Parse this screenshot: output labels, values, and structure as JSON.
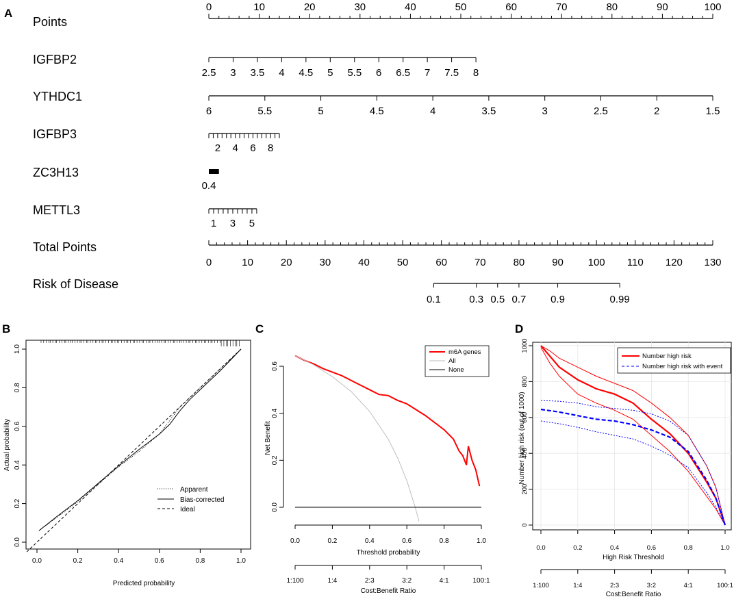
{
  "chart_data": [
    {
      "panel": "A",
      "type": "nomogram",
      "rows": [
        {
          "name": "Points",
          "scale": "points",
          "ticks": [
            0,
            10,
            20,
            30,
            40,
            50,
            60,
            70,
            80,
            90,
            100
          ]
        },
        {
          "name": "IGFBP2",
          "ticks": [
            "2.5",
            "3",
            "3.5",
            "4",
            "4.5",
            "5",
            "5.5",
            "6",
            "6.5",
            "7",
            "7.5",
            "8"
          ],
          "points_range": [
            0,
            53
          ]
        },
        {
          "name": "YTHDC1",
          "ticks": [
            "6",
            "5.5",
            "5",
            "4.5",
            "4",
            "3.5",
            "3",
            "2.5",
            "2",
            "1.5"
          ],
          "points_range": [
            0,
            100
          ]
        },
        {
          "name": "IGFBP3",
          "ticks": [
            "2",
            "4",
            "6",
            "8"
          ],
          "minor_from": 1,
          "minor_to": 9,
          "points_range": [
            0,
            14
          ]
        },
        {
          "name": "ZC3H13",
          "ticks": [
            "0.4"
          ],
          "points_range": [
            0,
            2
          ]
        },
        {
          "name": "METTL3",
          "ticks": [
            "1",
            "3",
            "5"
          ],
          "minor_from": 0.5,
          "minor_to": 5.5,
          "points_range": [
            0,
            9.5
          ]
        },
        {
          "name": "Total Points",
          "scale": "total",
          "ticks": [
            0,
            10,
            20,
            30,
            40,
            50,
            60,
            70,
            80,
            90,
            100,
            110,
            120,
            130
          ]
        },
        {
          "name": "Risk of Disease",
          "ticks": [
            "0.1",
            "0.3",
            "0.5",
            "0.7",
            "0.9",
            "0.99"
          ],
          "total_points": [
            58,
            69,
            74.5,
            80,
            90,
            106
          ]
        }
      ]
    },
    {
      "panel": "B",
      "type": "line",
      "title": "",
      "xlabel": "Predicted probability",
      "ylabel": "Actual probability",
      "xlim": [
        0,
        1
      ],
      "ylim": [
        0,
        1
      ],
      "xticks": [
        "0.0",
        "0.2",
        "0.4",
        "0.6",
        "0.8",
        "1.0"
      ],
      "yticks": [
        "0.0",
        "0.2",
        "0.4",
        "0.6",
        "0.8",
        "1.0"
      ],
      "legend": [
        "Apparent",
        "Bias-corrected",
        "Ideal"
      ],
      "series": [
        {
          "name": "Apparent",
          "style": "dotted",
          "x": [
            0.01,
            0.1,
            0.2,
            0.3,
            0.4,
            0.5,
            0.6,
            0.7,
            0.8,
            0.9,
            1.0
          ],
          "y": [
            0.06,
            0.13,
            0.21,
            0.3,
            0.39,
            0.47,
            0.56,
            0.7,
            0.8,
            0.9,
            1.0
          ]
        },
        {
          "name": "Bias-corrected",
          "style": "solid",
          "x": [
            0.01,
            0.1,
            0.2,
            0.3,
            0.4,
            0.5,
            0.55,
            0.6,
            0.65,
            0.7,
            0.75,
            0.8,
            0.9,
            1.0
          ],
          "y": [
            0.06,
            0.135,
            0.215,
            0.305,
            0.395,
            0.48,
            0.52,
            0.56,
            0.61,
            0.68,
            0.74,
            0.79,
            0.89,
            1.0
          ]
        },
        {
          "name": "Ideal",
          "style": "dashed",
          "x": [
            -0.05,
            1.0
          ],
          "y": [
            -0.05,
            1.0
          ]
        }
      ]
    },
    {
      "panel": "C",
      "type": "line",
      "xlabel": "Threshold probability",
      "ylabel": "Net Benefit",
      "xlim": [
        0,
        1
      ],
      "ylim": [
        -0.1,
        0.7
      ],
      "xticks": [
        "0.0",
        "0.2",
        "0.4",
        "0.6",
        "0.8",
        "1.0"
      ],
      "yticks": [
        "0.0",
        "0.2",
        "0.4",
        "0.6"
      ],
      "cost_benefit_label": "Cost:Benefit Ratio",
      "cost_benefit_ticks": [
        "1:100",
        "1:4",
        "2:3",
        "3:2",
        "4:1",
        "100:1"
      ],
      "series": [
        {
          "name": "m6A genes",
          "color": "#ff0000",
          "x": [
            0,
            0.05,
            0.1,
            0.15,
            0.2,
            0.25,
            0.3,
            0.35,
            0.4,
            0.45,
            0.5,
            0.55,
            0.6,
            0.65,
            0.7,
            0.75,
            0.8,
            0.85,
            0.88,
            0.9,
            0.92,
            0.93,
            0.95,
            0.97,
            0.99
          ],
          "y": [
            0.645,
            0.625,
            0.61,
            0.59,
            0.575,
            0.56,
            0.54,
            0.52,
            0.5,
            0.48,
            0.475,
            0.455,
            0.44,
            0.415,
            0.39,
            0.36,
            0.33,
            0.29,
            0.24,
            0.22,
            0.18,
            0.26,
            0.2,
            0.16,
            0.09
          ]
        },
        {
          "name": "All",
          "color": "#bebebe",
          "x": [
            0,
            0.1,
            0.2,
            0.3,
            0.4,
            0.5,
            0.55,
            0.6,
            0.645,
            0.665
          ],
          "y": [
            0.645,
            0.606,
            0.556,
            0.493,
            0.408,
            0.29,
            0.211,
            0.113,
            0.0,
            -0.06
          ]
        },
        {
          "name": "None",
          "color": "#000000",
          "x": [
            0,
            1
          ],
          "y": [
            0,
            0
          ]
        }
      ]
    },
    {
      "panel": "D",
      "type": "line",
      "xlabel": "High Risk Threshold",
      "ylabel": "Number high risk (out of 1000)",
      "xlim": [
        0,
        1
      ],
      "ylim": [
        0,
        1000
      ],
      "xticks": [
        "0.0",
        "0.2",
        "0.4",
        "0.6",
        "0.8",
        "1.0"
      ],
      "yticks": [
        "0",
        "200",
        "400",
        "600",
        "800",
        "1000"
      ],
      "cost_benefit_label": "Cost:Benefit Ratio",
      "cost_benefit_ticks": [
        "1:100",
        "1:4",
        "2:3",
        "3:2",
        "4:1",
        "100:1"
      ],
      "series": [
        {
          "name": "Number high risk",
          "color": "#ff0000",
          "style": "solid",
          "x": [
            0,
            0.05,
            0.1,
            0.2,
            0.3,
            0.4,
            0.5,
            0.6,
            0.7,
            0.8,
            0.9,
            0.95,
            1.0
          ],
          "y": [
            1000,
            940,
            880,
            810,
            760,
            730,
            680,
            590,
            510,
            400,
            240,
            150,
            0
          ]
        },
        {
          "name": "Number high risk upper",
          "color": "#ff0000",
          "style": "thin",
          "x": [
            0,
            0.05,
            0.1,
            0.2,
            0.3,
            0.4,
            0.5,
            0.6,
            0.7,
            0.8,
            0.9,
            0.95,
            1.0
          ],
          "y": [
            1000,
            970,
            930,
            880,
            830,
            790,
            750,
            680,
            600,
            500,
            330,
            210,
            0
          ]
        },
        {
          "name": "Number high risk lower",
          "color": "#ff0000",
          "style": "thin",
          "x": [
            0,
            0.05,
            0.1,
            0.2,
            0.3,
            0.4,
            0.5,
            0.6,
            0.7,
            0.8,
            0.9,
            0.95,
            1.0
          ],
          "y": [
            990,
            900,
            830,
            730,
            680,
            640,
            590,
            500,
            410,
            300,
            160,
            90,
            0
          ]
        },
        {
          "name": "Number high risk with event",
          "color": "#0000ff",
          "style": "dashed",
          "x": [
            0,
            0.1,
            0.2,
            0.3,
            0.4,
            0.5,
            0.6,
            0.7,
            0.8,
            0.9,
            0.95,
            1.0
          ],
          "y": [
            645,
            630,
            610,
            590,
            580,
            560,
            530,
            490,
            410,
            250,
            150,
            0
          ]
        },
        {
          "name": "Event upper",
          "color": "#0000ff",
          "style": "dotted",
          "x": [
            0,
            0.1,
            0.2,
            0.3,
            0.4,
            0.5,
            0.6,
            0.7,
            0.8,
            0.9,
            0.95,
            1.0
          ],
          "y": [
            695,
            690,
            680,
            660,
            650,
            640,
            620,
            580,
            500,
            330,
            210,
            0
          ]
        },
        {
          "name": "Event lower",
          "color": "#0000ff",
          "style": "dotted",
          "x": [
            0,
            0.1,
            0.2,
            0.3,
            0.4,
            0.5,
            0.6,
            0.7,
            0.8,
            0.9,
            0.95,
            1.0
          ],
          "y": [
            580,
            565,
            545,
            520,
            500,
            480,
            440,
            390,
            320,
            180,
            100,
            0
          ]
        }
      ]
    }
  ],
  "panel_labels": [
    "A",
    "B",
    "C",
    "D"
  ],
  "legends": {
    "B": [
      "Apparent",
      "Bias-corrected",
      "Ideal"
    ],
    "C": [
      "m6A genes",
      "All",
      "None"
    ],
    "D": [
      "Number high risk",
      "Number high risk with event"
    ]
  }
}
